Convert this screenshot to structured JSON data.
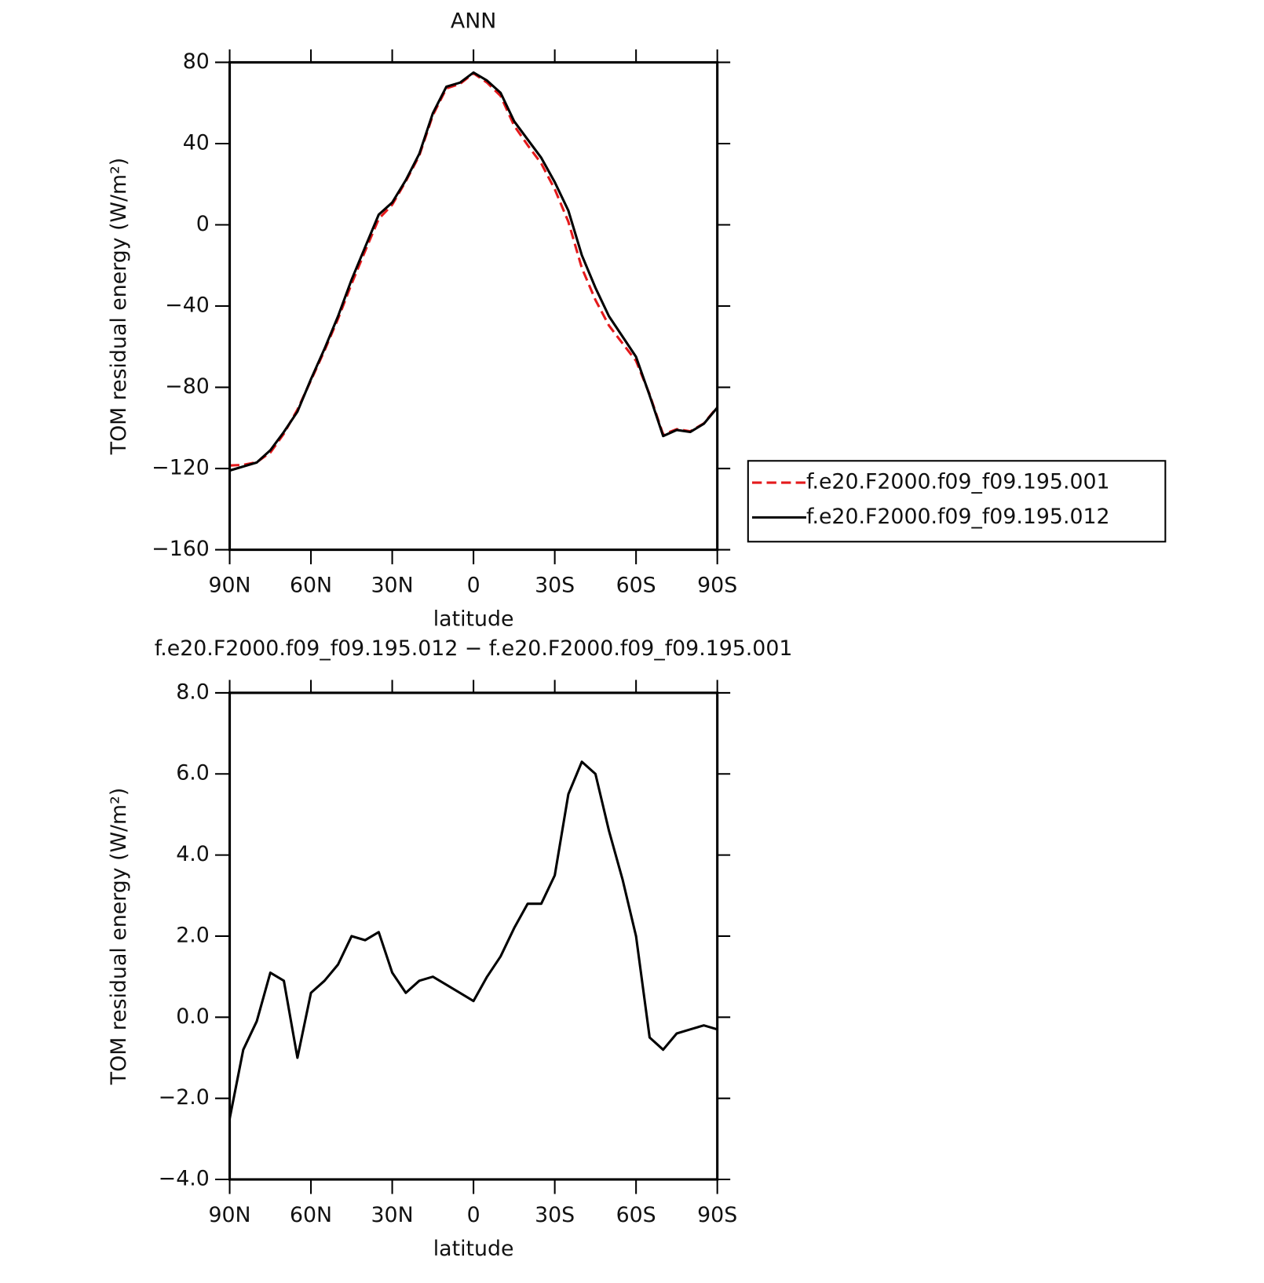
{
  "chart_data": [
    {
      "type": "line",
      "title": "ANN",
      "xlabel": "latitude",
      "ylabel": "TOM residual energy (W/m²)",
      "x": [
        90,
        85,
        80,
        75,
        70,
        65,
        60,
        55,
        50,
        45,
        40,
        35,
        30,
        25,
        20,
        15,
        10,
        5,
        0,
        -5,
        -10,
        -15,
        -20,
        -25,
        -30,
        -35,
        -40,
        -45,
        -50,
        -55,
        -60,
        -65,
        -70,
        -75,
        -80,
        -85,
        -90
      ],
      "series": [
        {
          "name": "f.e20.F2000.f09_f09.195.001",
          "color": "#e41a1c",
          "linestyle": "dashed",
          "values": [
            -118.5,
            -118.2,
            -116.9,
            -112.1,
            -102.9,
            -91,
            -76.6,
            -61.9,
            -46.3,
            -29,
            -12.9,
            2.9,
            9.9,
            21.4,
            34.1,
            54,
            67.2,
            69.4,
            74.6,
            70,
            63.5,
            48.8,
            39.2,
            30.2,
            17.5,
            1.5,
            -21.3,
            -37,
            -49.6,
            -58.4,
            -67,
            -83.5,
            -103.2,
            -100.6,
            -101.7,
            -97.8,
            -89.7
          ]
        },
        {
          "name": "f.e20.F2000.f09_f09.195.012",
          "color": "#000000",
          "linestyle": "solid",
          "values": [
            -121,
            -119,
            -117,
            -111,
            -102,
            -92,
            -76,
            -61,
            -45,
            -27,
            -11,
            5,
            11,
            22,
            35,
            55,
            68,
            70,
            75,
            71,
            65,
            51,
            42,
            33,
            21,
            7,
            -15,
            -31,
            -45,
            -55,
            -65,
            -84,
            -104,
            -101,
            -102,
            -98,
            -90
          ]
        }
      ],
      "xlim": [
        90,
        -90
      ],
      "xticks": [
        {
          "value": 90,
          "label": "90N"
        },
        {
          "value": 60,
          "label": "60N"
        },
        {
          "value": 30,
          "label": "30N"
        },
        0,
        {
          "value": -30,
          "label": "30S"
        },
        {
          "value": -60,
          "label": "60S"
        },
        {
          "value": -90,
          "label": "90S"
        }
      ],
      "ylim": [
        -160,
        80
      ],
      "yticks": [
        80,
        40,
        0,
        {
          "value": -40,
          "label": "−40"
        },
        {
          "value": -80,
          "label": "−80"
        },
        {
          "value": -120,
          "label": "−120"
        },
        {
          "value": -160,
          "label": "−160"
        }
      ],
      "legend": "outside-right"
    },
    {
      "type": "line",
      "title": "f.e20.F2000.f09_f09.195.012 − f.e20.F2000.f09_f09.195.001",
      "xlabel": "latitude",
      "ylabel": "TOM residual energy (W/m²)",
      "x": [
        90,
        85,
        80,
        75,
        70,
        65,
        60,
        55,
        50,
        45,
        40,
        35,
        30,
        25,
        20,
        15,
        10,
        5,
        0,
        -5,
        -10,
        -15,
        -20,
        -25,
        -30,
        -35,
        -40,
        -45,
        -50,
        -55,
        -60,
        -65,
        -70,
        -75,
        -80,
        -85,
        -90
      ],
      "values": [
        -2.5,
        -0.8,
        -0.1,
        1.1,
        0.9,
        -1.0,
        0.6,
        0.9,
        1.3,
        2.0,
        1.9,
        2.1,
        1.1,
        0.6,
        0.9,
        1.0,
        0.8,
        0.6,
        0.4,
        1.0,
        1.5,
        2.2,
        2.8,
        2.8,
        3.5,
        5.5,
        6.3,
        6.0,
        4.6,
        3.4,
        2.0,
        -0.5,
        -0.8,
        -0.4,
        -0.3,
        -0.2,
        -0.3
      ],
      "color": "#000000",
      "xlim": [
        90,
        -90
      ],
      "xticks": [
        {
          "value": 90,
          "label": "90N"
        },
        {
          "value": 60,
          "label": "60N"
        },
        {
          "value": 30,
          "label": "30N"
        },
        0,
        {
          "value": -30,
          "label": "30S"
        },
        {
          "value": -60,
          "label": "60S"
        },
        {
          "value": -90,
          "label": "90S"
        }
      ],
      "ylim": [
        -4,
        8
      ],
      "yticks": [
        {
          "value": 8,
          "label": "8.0"
        },
        {
          "value": 6,
          "label": "6.0"
        },
        {
          "value": 4,
          "label": "4.0"
        },
        {
          "value": 2,
          "label": "2.0"
        },
        {
          "value": 0,
          "label": "0.0"
        },
        {
          "value": -2,
          "label": "−2.0"
        },
        {
          "value": -4,
          "label": "−4.0"
        }
      ]
    }
  ]
}
